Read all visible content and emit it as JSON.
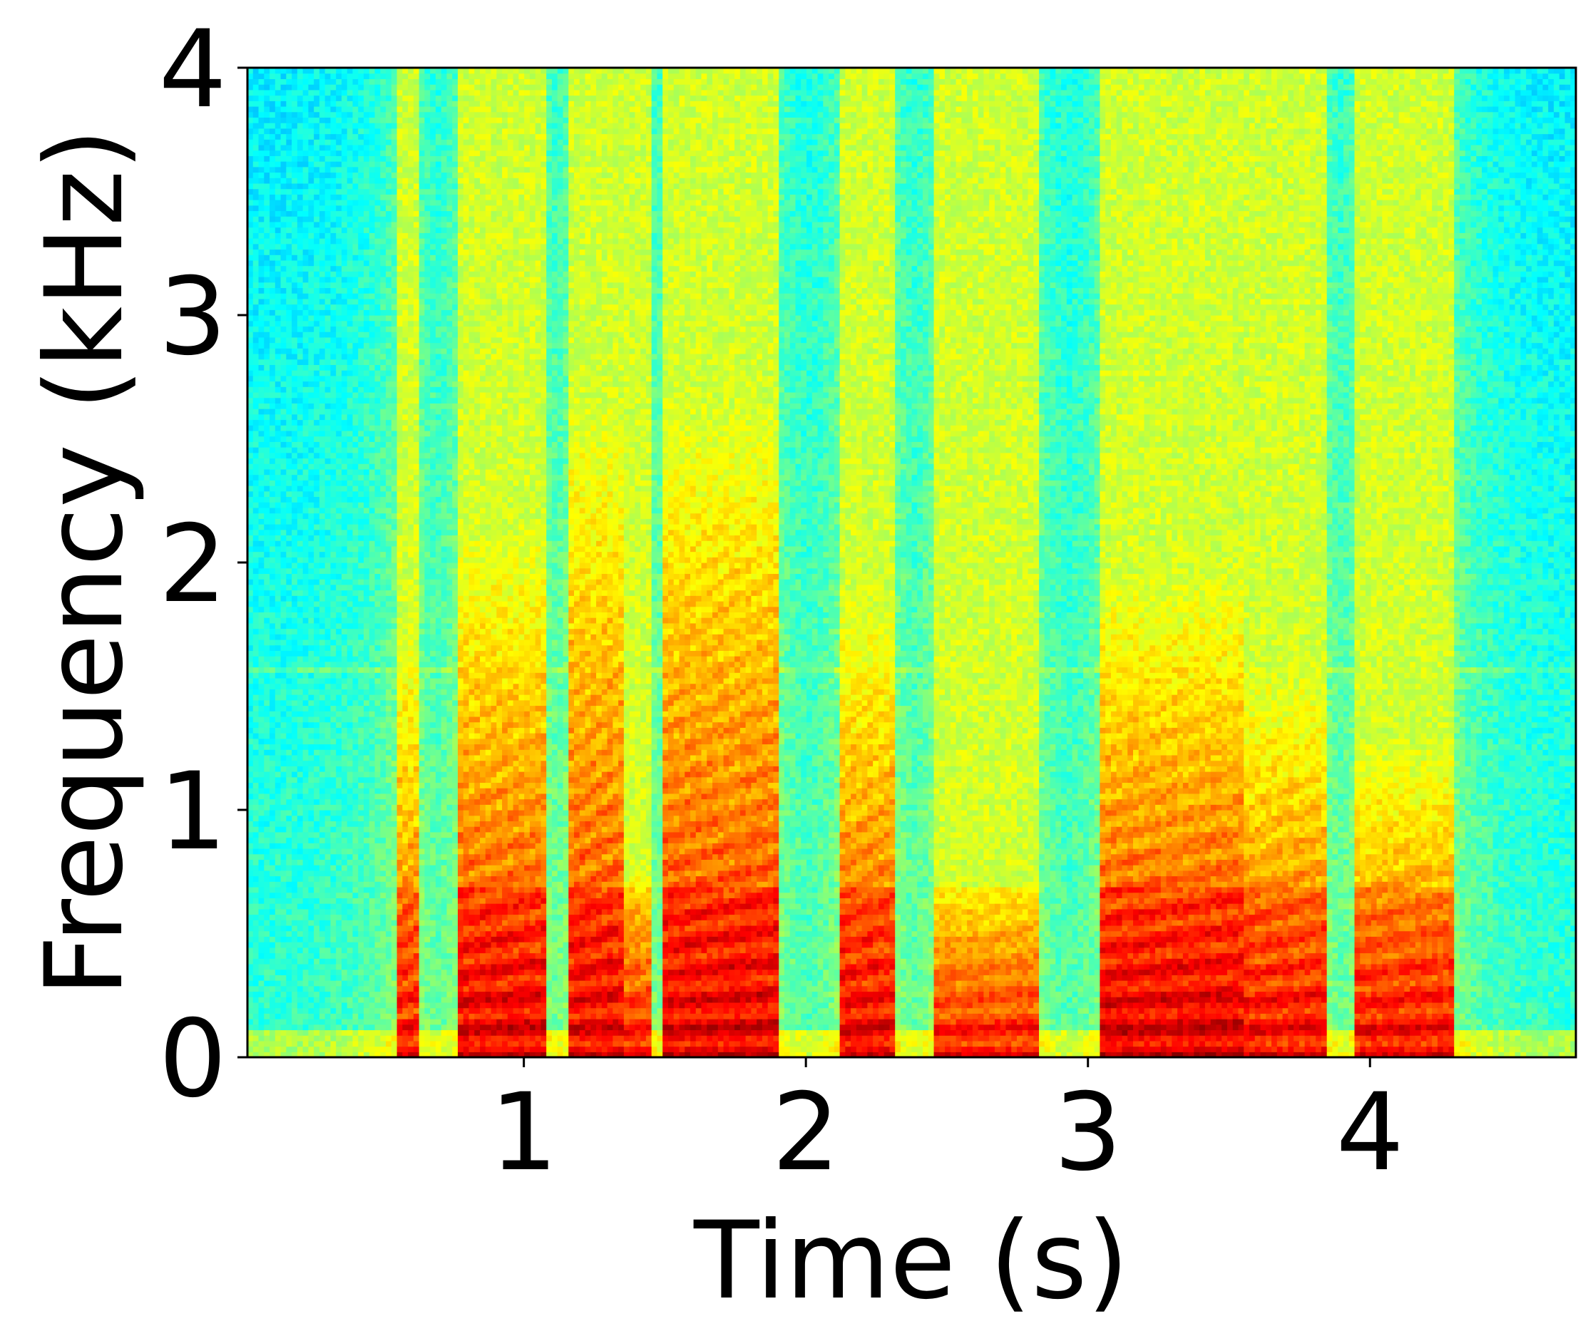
{
  "chart_data": {
    "type": "heatmap",
    "subtype": "spectrogram",
    "title": "",
    "xlabel": "Time (s)",
    "ylabel": "Frequency (kHz)",
    "xlim": [
      0.02,
      4.73
    ],
    "ylim": [
      0,
      4
    ],
    "x_ticks": [
      1,
      2,
      3,
      4
    ],
    "x_tick_labels": [
      "1",
      "2",
      "3",
      "4"
    ],
    "y_ticks": [
      0,
      1,
      2,
      3,
      4
    ],
    "y_tick_labels": [
      "0",
      "1",
      "2",
      "3",
      "4"
    ],
    "grid": false,
    "legend": "none",
    "colormap": "jet",
    "background_level_color": "#5cf08a",
    "voiced_segments": [
      {
        "start": 0.55,
        "end": 0.63,
        "max_freq": 1.8,
        "intensity": 0.75
      },
      {
        "start": 0.76,
        "end": 1.08,
        "max_freq": 2.2,
        "intensity": 0.95
      },
      {
        "start": 1.15,
        "end": 1.35,
        "max_freq": 2.7,
        "intensity": 0.9
      },
      {
        "start": 1.35,
        "end": 1.45,
        "max_freq": 0.8,
        "intensity": 0.8
      },
      {
        "start": 1.5,
        "end": 1.9,
        "max_freq": 2.7,
        "intensity": 0.95
      },
      {
        "start": 2.12,
        "end": 2.32,
        "max_freq": 1.9,
        "intensity": 0.9
      },
      {
        "start": 2.45,
        "end": 2.82,
        "max_freq": 0.7,
        "intensity": 0.8
      },
      {
        "start": 3.05,
        "end": 3.55,
        "max_freq": 2.0,
        "intensity": 1.0
      },
      {
        "start": 3.55,
        "end": 3.85,
        "max_freq": 1.6,
        "intensity": 0.85
      },
      {
        "start": 3.95,
        "end": 4.3,
        "max_freq": 1.3,
        "intensity": 0.85
      }
    ],
    "noise_line_freq": 1.57
  }
}
